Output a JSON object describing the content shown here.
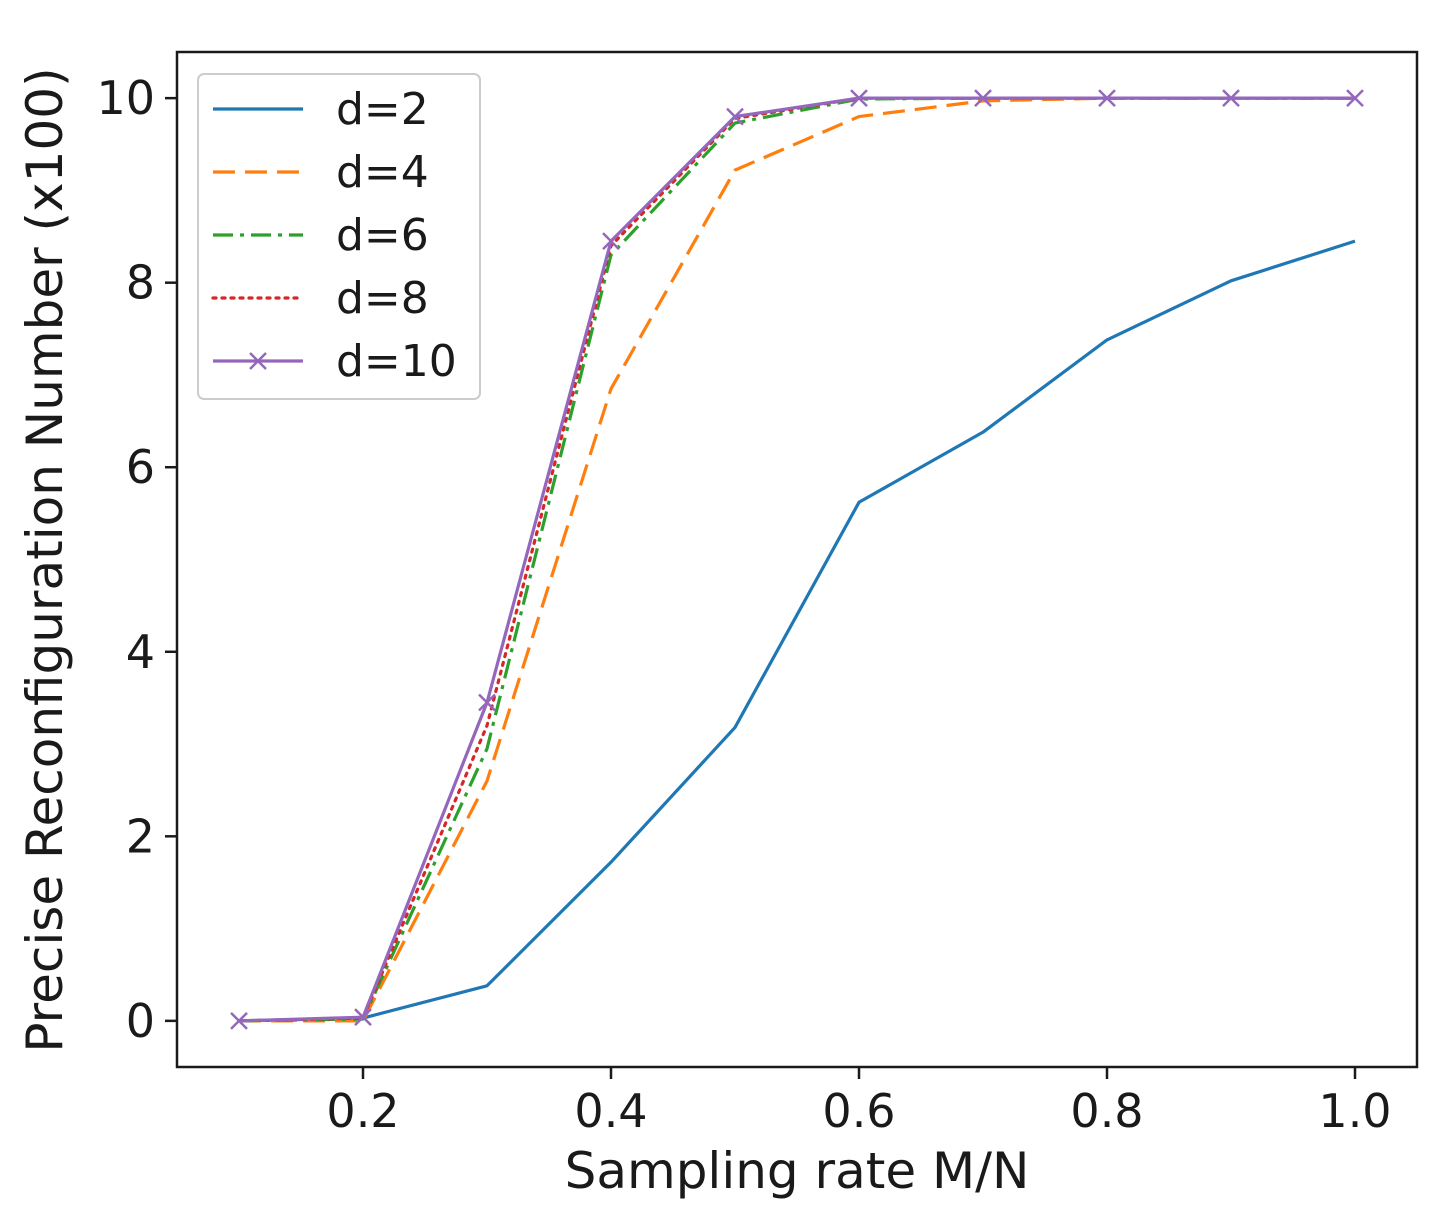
{
  "chart_data": {
    "type": "line",
    "title": "",
    "xlabel": "Sampling rate M/N",
    "ylabel": "Precise Reconfiguration Number (x100)",
    "xlim": [
      0.05,
      1.05
    ],
    "ylim": [
      -0.5,
      10.5
    ],
    "xticks": [
      0.2,
      0.4,
      0.6,
      0.8,
      1.0
    ],
    "xtick_labels": [
      "0.2",
      "0.4",
      "0.6",
      "0.8",
      "1.0"
    ],
    "yticks": [
      0,
      2,
      4,
      6,
      8,
      10
    ],
    "ytick_labels": [
      "0",
      "2",
      "4",
      "6",
      "8",
      "10"
    ],
    "grid": false,
    "legend_position": "top-left",
    "x": [
      0.1,
      0.2,
      0.3,
      0.4,
      0.5,
      0.6,
      0.7,
      0.8,
      0.9,
      1.0
    ],
    "series": [
      {
        "name": "d=2",
        "color": "#1f77b4",
        "style": "solid",
        "marker": "none",
        "values": [
          0.0,
          0.03,
          0.38,
          1.72,
          3.18,
          5.62,
          6.38,
          7.38,
          8.02,
          8.45
        ]
      },
      {
        "name": "d=4",
        "color": "#ff7f0e",
        "style": "dashed",
        "marker": "none",
        "values": [
          0.0,
          0.0,
          2.6,
          6.85,
          9.22,
          9.8,
          9.97,
          10.0,
          10.0,
          10.0
        ]
      },
      {
        "name": "d=6",
        "color": "#2ca02c",
        "style": "dashdot",
        "marker": "none",
        "values": [
          0.0,
          0.02,
          2.95,
          8.3,
          9.73,
          9.99,
          10.0,
          10.0,
          10.0,
          10.0
        ]
      },
      {
        "name": "d=8",
        "color": "#d62728",
        "style": "dotted",
        "marker": "none",
        "values": [
          0.0,
          0.03,
          3.2,
          8.4,
          9.78,
          10.0,
          10.0,
          10.0,
          10.0,
          10.0
        ]
      },
      {
        "name": "d=10",
        "color": "#9467bd",
        "style": "solid",
        "marker": "x",
        "values": [
          0.0,
          0.04,
          3.45,
          8.45,
          9.8,
          10.0,
          10.0,
          10.0,
          10.0,
          10.0
        ]
      }
    ]
  }
}
